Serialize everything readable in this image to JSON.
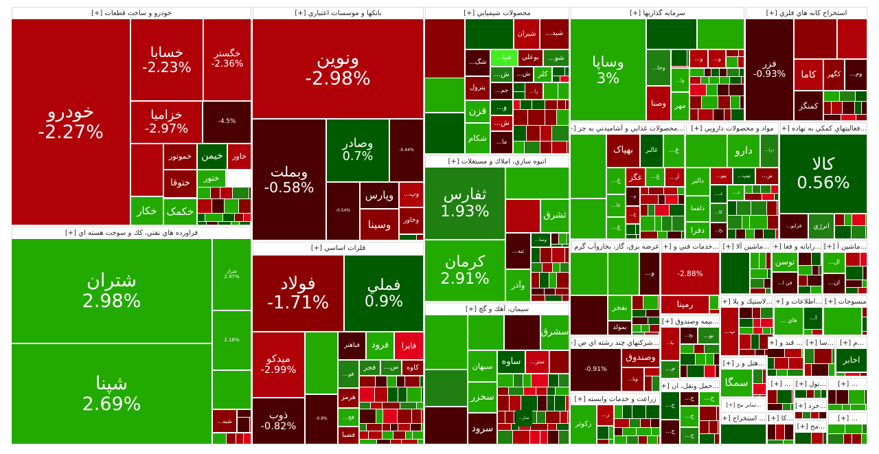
{
  "palette": {
    "strong_red": "#b00008",
    "red": "#8b0000",
    "dark_red": "#4a0000",
    "dark_green": "#005a00",
    "green": "#1f7f10",
    "bright_green": "#22aa00",
    "highlight": "#44ee22"
  },
  "sectors": [
    {
      "title": "خودرو و ساخت قطعات [+]",
      "tiles": [
        {
          "label": "خودرو",
          "change": "-2.27%",
          "color": "#b00008"
        },
        {
          "label": "خسابا",
          "change": "-2.23%",
          "color": "#b00008"
        },
        {
          "label": "خگستر",
          "change": "-2.36%",
          "color": "#b00008"
        },
        {
          "label": "خزامیا",
          "change": "-2.97%",
          "color": "#b00008"
        },
        {
          "change": "-4.5%",
          "color": "#4a0000"
        },
        {
          "color": "#b00008"
        },
        {
          "label": "خموتور",
          "color": "#8b0000"
        },
        {
          "label": "خیمن",
          "color": "#005a00"
        },
        {
          "label": "خاور",
          "color": "#b00008"
        },
        {
          "label": "ختوقا",
          "color": "#8b0000"
        },
        {
          "label": "ختور",
          "color": "#22aa00"
        },
        {
          "label": "خکار",
          "color": "#22aa00"
        },
        {
          "label": "خکمک",
          "color": "#22aa00"
        }
      ]
    },
    {
      "title": "فراورده هاي نفتي، كك و سوخت هسته اي [+]",
      "tiles": [
        {
          "label": "شتران",
          "change": "2.98%",
          "color": "#22aa00"
        },
        {
          "label": "شپنا",
          "change": "2.69%",
          "color": "#22aa00"
        },
        {
          "label": "شراز",
          "change": "2.97%",
          "color": "#22aa00"
        },
        {
          "change": "2.16%",
          "color": "#22aa00"
        },
        {
          "color": "#22aa00"
        },
        {
          "label": "...شبه",
          "color": "#8b0000"
        }
      ]
    },
    {
      "title": "بانكها و موسسات اعتباري [+]",
      "tiles": [
        {
          "label": "ونوین",
          "change": "-2.98%",
          "color": "#b00008"
        },
        {
          "label": "وبملت",
          "change": "-0.58%",
          "color": "#4a0000"
        },
        {
          "label": "وصادر",
          "change": "0.7%",
          "color": "#005a00"
        },
        {
          "change": "-0.44%",
          "color": "#4a0000"
        },
        {
          "change": "-0.54%",
          "color": "#4a0000"
        },
        {
          "label": "وپارس",
          "color": "#4a0000"
        },
        {
          "label": "...وپ",
          "color": "#b00008"
        },
        {
          "label": "وسینا",
          "color": "#8b0000"
        },
        {
          "label": "وخاور",
          "color": "#8b0000"
        }
      ]
    },
    {
      "title": "فلزات اساسي [+]",
      "tiles": [
        {
          "label": "فولاد",
          "change": "-1.71%",
          "color": "#8b0000"
        },
        {
          "label": "فملي",
          "change": "0.9%",
          "color": "#005a00"
        },
        {
          "label": "میدکو",
          "change": "-2.99%",
          "color": "#b00008"
        },
        {
          "color": "#22aa00"
        },
        {
          "label": "ذوب",
          "change": "-0.82%",
          "color": "#4a0000"
        },
        {
          "change": "-0.8%",
          "color": "#4a0000"
        },
        {
          "label": "فباهنر",
          "color": "#4a0000"
        },
        {
          "label": "فرود",
          "color": "#22aa00"
        },
        {
          "label": "فایرا",
          "color": "#e0001a"
        },
        {
          "label": "...فو",
          "color": "#1f7f10"
        },
        {
          "label": "فجر",
          "color": "#1f7f10"
        },
        {
          "label": "...س",
          "color": "#1f7f10"
        },
        {
          "label": "کاوه",
          "color": "#8b0000"
        },
        {
          "label": "هرمز",
          "color": "#8b0000"
        },
        {
          "label": "...فج",
          "color": "#22aa00"
        },
        {
          "label": "فصبا",
          "color": "#8b0000"
        }
      ]
    },
    {
      "title": "محصولات شيميايي [+]",
      "tiles": [
        {
          "color": "#8b0000"
        },
        {
          "color": "#22aa00"
        },
        {
          "color": "#005a00"
        },
        {
          "color": "#005a00"
        },
        {
          "label": "شیران",
          "color": "#b00008"
        },
        {
          "label": "...شید",
          "color": "#8b0000"
        },
        {
          "label": "...شگ",
          "color": "#4a0000"
        },
        {
          "label": "...شپا",
          "color": "#44ee22"
        },
        {
          "label": "بوعلي",
          "color": "#8b0000"
        },
        {
          "label": "...شو",
          "color": "#1f7f10"
        },
        {
          "label": "...ش",
          "color": "#1f7f10"
        },
        {
          "label": "...ش",
          "color": "#4a0000"
        },
        {
          "label": "کلر",
          "color": "#22aa00"
        },
        {
          "label": "پترول",
          "color": "#8b0000"
        },
        {
          "label": "...جم",
          "color": "#4a0000"
        },
        {
          "label": "...زا",
          "color": "#8b0000"
        },
        {
          "label": "قزن",
          "color": "#22aa00"
        },
        {
          "label": "...و",
          "color": "#005a00"
        },
        {
          "label": "شکام",
          "color": "#22aa00"
        },
        {
          "label": "...ش",
          "color": "#b00008"
        },
        {
          "label": "...ما",
          "color": "#4a0000"
        }
      ]
    },
    {
      "title": "انبوه سازي، املاك و مستغلات [+]",
      "tiles": [
        {
          "label": "ثفارس",
          "change": "1.93%",
          "color": "#1f7f10"
        },
        {
          "label": "کرمان",
          "change": "2.91%",
          "color": "#22aa00"
        },
        {
          "color": "#22aa00"
        },
        {
          "color": "#b00008"
        },
        {
          "label": "ثشرق",
          "color": "#22aa00"
        },
        {
          "label": "...ثبه",
          "color": "#4a0000"
        },
        {
          "label": "...وسا",
          "color": "#005a00"
        },
        {
          "label": "وآذر",
          "color": "#22aa00"
        }
      ]
    },
    {
      "title": "سيمان، آهك و گچ [+]",
      "tiles": [
        {
          "color": "#22aa00"
        },
        {
          "color": "#1f7f10"
        },
        {
          "color": "#4a0000"
        },
        {
          "color": "#22aa00"
        },
        {
          "color": "#4a0000"
        },
        {
          "label": "سشرق",
          "color": "#22aa00"
        },
        {
          "label": "سبهان",
          "color": "#22aa00"
        },
        {
          "label": "ساوه",
          "color": "#005a00"
        },
        {
          "label": "...ستر",
          "color": "#c00010"
        },
        {
          "color": "#8b0000"
        },
        {
          "label": "سخزر",
          "color": "#22aa00"
        },
        {
          "label": "سرود",
          "color": "#4a0000"
        },
        {
          "label": "...سار",
          "color": "#005a00"
        }
      ]
    },
    {
      "title": "سرمايه گذاريها [+]",
      "tiles": [
        {
          "label": "وساپا",
          "change": "3%",
          "color": "#22aa00"
        },
        {
          "color": "#005a00"
        },
        {
          "color": "#22aa00"
        },
        {
          "label": "...وخا",
          "color": "#1f7f10"
        },
        {
          "label": "...وا",
          "color": "#22aa00"
        },
        {
          "label": "وصنا",
          "color": "#b00008"
        },
        {
          "label": "مهر",
          "color": "#22aa00"
        },
        {
          "label": "...و",
          "color": "#b00008"
        },
        {
          "label": "...و",
          "color": "#b00008"
        }
      ]
    },
    {
      "title": "استخراج كانه هاي فلزي [+]",
      "tiles": [
        {
          "label": "فزر",
          "change": "-0.93%",
          "color": "#4a0000"
        },
        {
          "color": "#8b0000"
        },
        {
          "color": "#b00008"
        },
        {
          "label": "کاما",
          "color": "#b00008"
        },
        {
          "label": "کگهر",
          "color": "#8b0000"
        },
        {
          "label": "...وم",
          "color": "#4a0000"
        },
        {
          "label": "کمنگز",
          "color": "#4a0000"
        }
      ]
    },
    {
      "title": "...محصولات غذايي و آشاميدني به جز [+]",
      "tiles": [
        {
          "color": "#22aa00"
        },
        {
          "color": "#22aa00"
        },
        {
          "label": "بهپاک",
          "color": "#8b0000"
        },
        {
          "label": "غالبر",
          "color": "#005a00"
        },
        {
          "label": "...غ",
          "color": "#22aa00"
        },
        {
          "label": "...غ",
          "color": "#22aa00"
        },
        {
          "label": "غگز",
          "color": "#b00008"
        },
        {
          "label": "...غ",
          "color": "#22aa00"
        },
        {
          "label": "...آر",
          "color": "#b00008"
        },
        {
          "label": "...غا",
          "color": "#22aa00"
        },
        {
          "label": "...غ",
          "color": "#22aa00"
        },
        {
          "label": "...و",
          "color": "#4a0000"
        },
        {
          "label": "...غ",
          "color": "#b00008"
        }
      ]
    },
    {
      "title": "مواد و محصولات دارويي [+]",
      "tiles": [
        {
          "color": "#22aa00"
        },
        {
          "label": "دارو",
          "color": "#22aa00"
        },
        {
          "label": "...درا",
          "color": "#1f7f10"
        },
        {
          "label": "دالبر",
          "color": "#22aa00"
        },
        {
          "label": "...بیو",
          "color": "#b00008"
        },
        {
          "label": "...تیپ",
          "color": "#005a00"
        },
        {
          "label": "...بر",
          "color": "#8b0000"
        },
        {
          "label": "...د",
          "color": "#005a00"
        },
        {
          "label": "...د",
          "color": "#22aa00"
        },
        {
          "label": "دلقما",
          "color": "#22aa00"
        },
        {
          "label": "...کا",
          "color": "#1f7f10"
        },
        {
          "label": "دفرا",
          "color": "#22aa00"
        },
        {
          "label": "...یخ",
          "color": "#4a0000"
        }
      ]
    },
    {
      "title": "...فعاليتهاي كمكي به نهاده [+]",
      "tiles": [
        {
          "label": "کالا",
          "change": "0.56%",
          "color": "#005a00"
        },
        {
          "label": "...فرابو",
          "color": "#4a0000"
        },
        {
          "label": "انرژي",
          "color": "#1f7f10"
        }
      ]
    },
    {
      "title": "عرضه برق، گاز، بخاروآب گرم [+]",
      "tiles": [
        {
          "color": "#22aa00"
        },
        {
          "color": "#22aa00"
        },
        {
          "label": "...و",
          "color": "#4a0000"
        },
        {
          "color": "#4a0000"
        },
        {
          "label": "بفجر",
          "color": "#22aa00"
        },
        {
          "label": "بمولد",
          "color": "#4a0000"
        }
      ]
    },
    {
      "title": "...خدمات فني و [+]",
      "tiles": [
        {
          "change": "-2.88%",
          "color": "#b00008"
        },
        {
          "label": "رمپنا",
          "color": "#b00008"
        }
      ]
    },
    {
      "title": "...بيمه وصندوق [+]",
      "tiles": [
        {
          "label": "...بیا",
          "color": "#b00008"
        },
        {
          "label": "...بخ",
          "color": "#4a0000"
        },
        {
          "label": "...نو",
          "color": "#1f7f10"
        },
        {
          "label": "...م",
          "color": "#1f7f10"
        }
      ]
    },
    {
      "title": "...شركتهاي چند رشته اي ص [+]",
      "tiles": [
        {
          "change": "-0.91%",
          "color": "#4a0000"
        },
        {
          "label": "وصندوق",
          "color": "#8b0000"
        },
        {
          "label": "...ویا",
          "color": "#8b0000"
        }
      ]
    },
    {
      "title": "زراعت و خدمات وابسته [+]",
      "tiles": [
        {
          "label": "زکوثر",
          "color": "#22aa00"
        },
        {
          "label": "...ز",
          "color": "#b00008"
        }
      ]
    },
    {
      "title": "...حمل ونقل، ان [+]",
      "tiles": [
        {
          "label": "...ح",
          "color": "#005a00"
        },
        {
          "label": "...ح",
          "color": "#4a0000"
        },
        {
          "label": "...ح",
          "color": "#22aa00"
        },
        {
          "label": "...ح",
          "color": "#4a0000"
        },
        {
          "label": "...ح",
          "color": "#22aa00"
        },
        {
          "label": "...ح",
          "color": "#1f7f10"
        }
      ]
    },
    {
      "title": "...ماشين آلا [+]",
      "tiles": [
        {
          "color": "#005a00"
        }
      ]
    },
    {
      "title": "...رايانه و فعا [+]",
      "tiles": [
        {
          "label": "توسن",
          "color": "#22aa00"
        },
        {
          "label": "...فن ا",
          "color": "#4a0000"
        }
      ]
    },
    {
      "title": "...ماشين آ [+]",
      "tiles": [
        {
          "label": "...ال",
          "color": "#22aa00"
        },
        {
          "label": "...ان",
          "color": "#4a0000"
        }
      ]
    },
    {
      "title": "...لاستيك و پلا [+]",
      "tiles": [
        {
          "label": "...پ",
          "color": "#b00008"
        }
      ]
    },
    {
      "title": "...اطلاعات و [+]",
      "tiles": [
        {
          "label": "... هاي",
          "color": "#22aa00"
        },
        {
          "label": "...ا",
          "color": "#005a00"
        }
      ]
    },
    {
      "title": "منسوجات [+]",
      "tiles": [
        {
          "color": "#22aa00"
        }
      ]
    },
    {
      "title": "...هتل و ر [+]",
      "tiles": [
        {
          "label": "سمگا",
          "color": "#22aa00"
        }
      ]
    },
    {
      "title": "... قند و [+]",
      "tiles": []
    },
    {
      "title": "...سا [+]",
      "tiles": []
    },
    {
      "title": "...م [+]",
      "tiles": [
        {
          "label": "اخابر",
          "color": "#005a00"
        }
      ]
    },
    {
      "title": "...ساير مح [+]",
      "tiles": []
    },
    {
      "title": "... [+]",
      "tiles": []
    },
    {
      "title": "...تول [+]",
      "tiles": []
    },
    {
      "title": "...خرد [+]",
      "tiles": []
    },
    {
      "title": "... استخراج [+]",
      "tiles": [
        {
          "color": "#005a00"
        }
      ]
    },
    {
      "title": "...كا [+]",
      "tiles": []
    },
    {
      "title": "...مح [+]",
      "tiles": []
    },
    {
      "title": "... [+]",
      "tiles": []
    },
    {
      "title": "... [+]",
      "tiles": []
    }
  ]
}
